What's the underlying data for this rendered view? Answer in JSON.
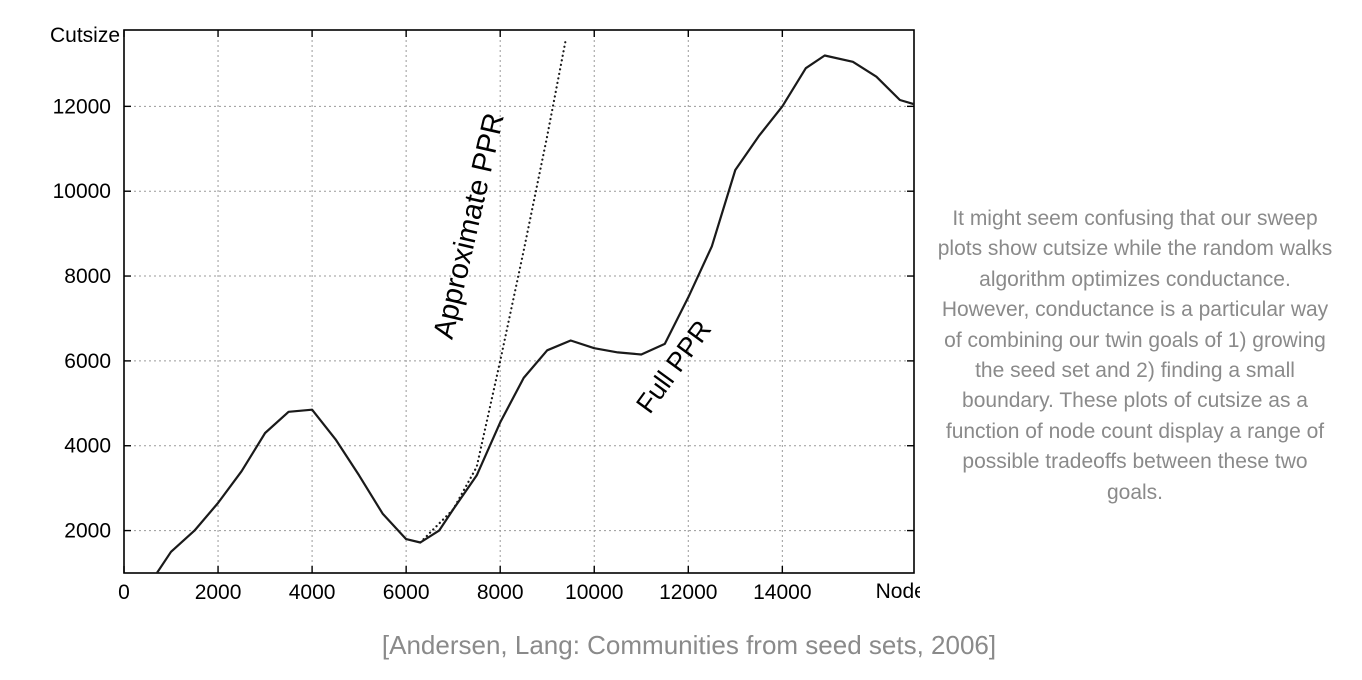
{
  "chart_data": {
    "type": "line",
    "xlabel": "Nodes",
    "ylabel": "Cutsize",
    "xlim": [
      0,
      16800
    ],
    "ylim": [
      1000,
      13800
    ],
    "x_ticks": [
      "0",
      "2000",
      "4000",
      "6000",
      "8000",
      "10000",
      "12000",
      "14000"
    ],
    "y_ticks": [
      "2000",
      "4000",
      "6000",
      "8000",
      "10000",
      "12000"
    ],
    "grid": true,
    "series": [
      {
        "name": "Full PPR",
        "style": "solid",
        "points": [
          [
            700,
            1000
          ],
          [
            1000,
            1500
          ],
          [
            1500,
            2000
          ],
          [
            2000,
            2650
          ],
          [
            2500,
            3400
          ],
          [
            3000,
            4300
          ],
          [
            3500,
            4800
          ],
          [
            4000,
            4850
          ],
          [
            4500,
            4150
          ],
          [
            5000,
            3300
          ],
          [
            5500,
            2400
          ],
          [
            6000,
            1800
          ],
          [
            6300,
            1720
          ],
          [
            6700,
            2000
          ],
          [
            7000,
            2500
          ],
          [
            7500,
            3300
          ],
          [
            8000,
            4550
          ],
          [
            8500,
            5600
          ],
          [
            9000,
            6250
          ],
          [
            9500,
            6480
          ],
          [
            10000,
            6300
          ],
          [
            10500,
            6200
          ],
          [
            11000,
            6150
          ],
          [
            11500,
            6400
          ],
          [
            12000,
            7500
          ],
          [
            12500,
            8700
          ],
          [
            13000,
            10500
          ],
          [
            13500,
            11300
          ],
          [
            14000,
            12000
          ],
          [
            14500,
            12900
          ],
          [
            14900,
            13200
          ],
          [
            15500,
            13050
          ],
          [
            16000,
            12700
          ],
          [
            16500,
            12150
          ],
          [
            16800,
            12050
          ]
        ]
      },
      {
        "name": "Approximate PPR",
        "style": "dotted",
        "points": [
          [
            6300,
            1720
          ],
          [
            7000,
            2500
          ],
          [
            7500,
            3500
          ],
          [
            8000,
            6000
          ],
          [
            8500,
            8600
          ],
          [
            9000,
            11300
          ],
          [
            9400,
            13600
          ]
        ]
      }
    ],
    "annotations": [
      {
        "text": "Approximate PPR",
        "x": 8000,
        "y": 8600
      },
      {
        "text": "Full PPR",
        "x": 11900,
        "y": 5800
      }
    ]
  },
  "note": "It might seem confusing that our sweep plots show cutsize while the random walks algorithm optimizes conductance. However, conductance is a particular way of combining our twin goals of 1) growing the seed set and 2) finding a small boundary. These plots of cutsize as a function of node count display a range of possible tradeoffs between these two goals.",
  "citation": "[Andersen, Lang: Communities from seed sets, 2006]"
}
